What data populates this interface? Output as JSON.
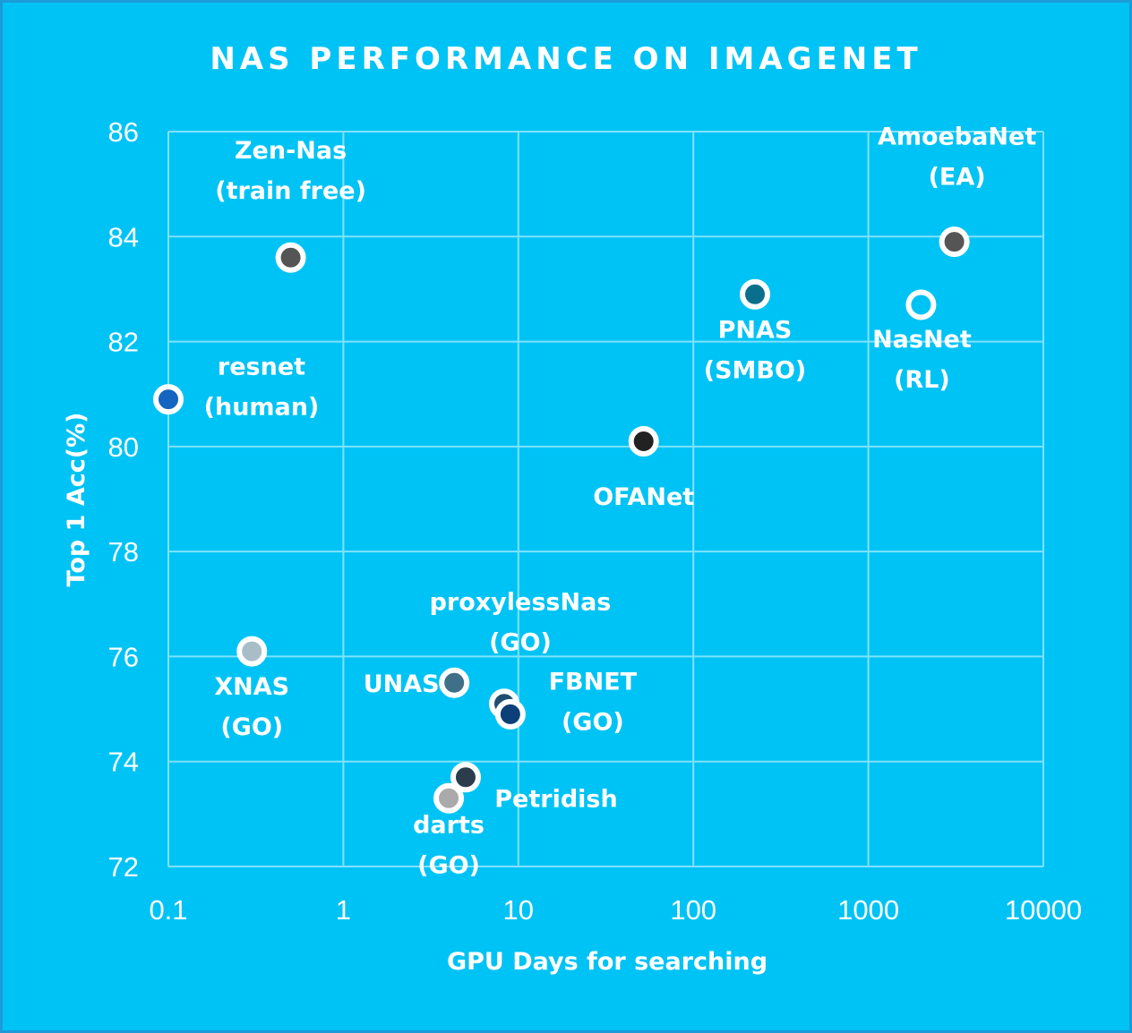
{
  "chart_data": {
    "type": "scatter",
    "title": "NAS PERFORMANCE ON IMAGENET",
    "xlabel": "GPU Days for searching",
    "ylabel": "Top 1 Acc(%)",
    "x_scale": "log",
    "xlim": [
      0.1,
      10000
    ],
    "ylim": [
      72,
      86
    ],
    "x_ticks": [
      "0.1",
      "1",
      "10",
      "100",
      "1000",
      "10000"
    ],
    "y_ticks": [
      "72",
      "74",
      "76",
      "78",
      "80",
      "82",
      "84",
      "86"
    ],
    "grid": true,
    "legend": "none",
    "colors": {
      "background": "#00c3f5",
      "frame": "#1c9bd8",
      "grid": "#7fe2fa",
      "marker_ring": "#ffffff",
      "text": "#ffffff"
    },
    "points": [
      {
        "x": 0.5,
        "y": 83.6,
        "fill": "#555555",
        "label": [
          "Zen-Nas",
          "(train free)"
        ]
      },
      {
        "x": 3100,
        "y": 83.9,
        "fill": "#555555",
        "label": [
          "AmoebaNet",
          "(EA)"
        ]
      },
      {
        "x": 225,
        "y": 82.9,
        "fill": "#0a6f8c",
        "label": [
          "PNAS",
          "(SMBO)"
        ]
      },
      {
        "x": 2000,
        "y": 82.7,
        "fill": "#00c3f5",
        "label": [
          "NasNet",
          "(RL)"
        ]
      },
      {
        "x": 0.1,
        "y": 80.9,
        "fill": "#1565c0",
        "label": [
          "resnet",
          "(human)"
        ]
      },
      {
        "x": 52,
        "y": 80.1,
        "fill": "#222222",
        "label": [
          "OFANet"
        ]
      },
      {
        "x": 0.3,
        "y": 76.1,
        "fill": "#a9bdc8",
        "label": [
          "XNAS",
          "(GO)"
        ]
      },
      {
        "x": 4.3,
        "y": 75.5,
        "fill": "#3f6f89",
        "label": [
          "UNAS"
        ]
      },
      {
        "x": 8.3,
        "y": 75.1,
        "fill": "#1f4f70",
        "label": [
          "proxylessNas",
          "(GO)"
        ]
      },
      {
        "x": 9,
        "y": 74.9,
        "fill": "#0d3f78",
        "label": [
          "FBNET",
          "(GO)"
        ]
      },
      {
        "x": 5,
        "y": 73.7,
        "fill": "#2b3d4d",
        "label": [
          "Petridish"
        ]
      },
      {
        "x": 4,
        "y": 73.3,
        "fill": "#aaaaaa",
        "label": [
          "darts",
          "(GO)"
        ]
      }
    ]
  }
}
